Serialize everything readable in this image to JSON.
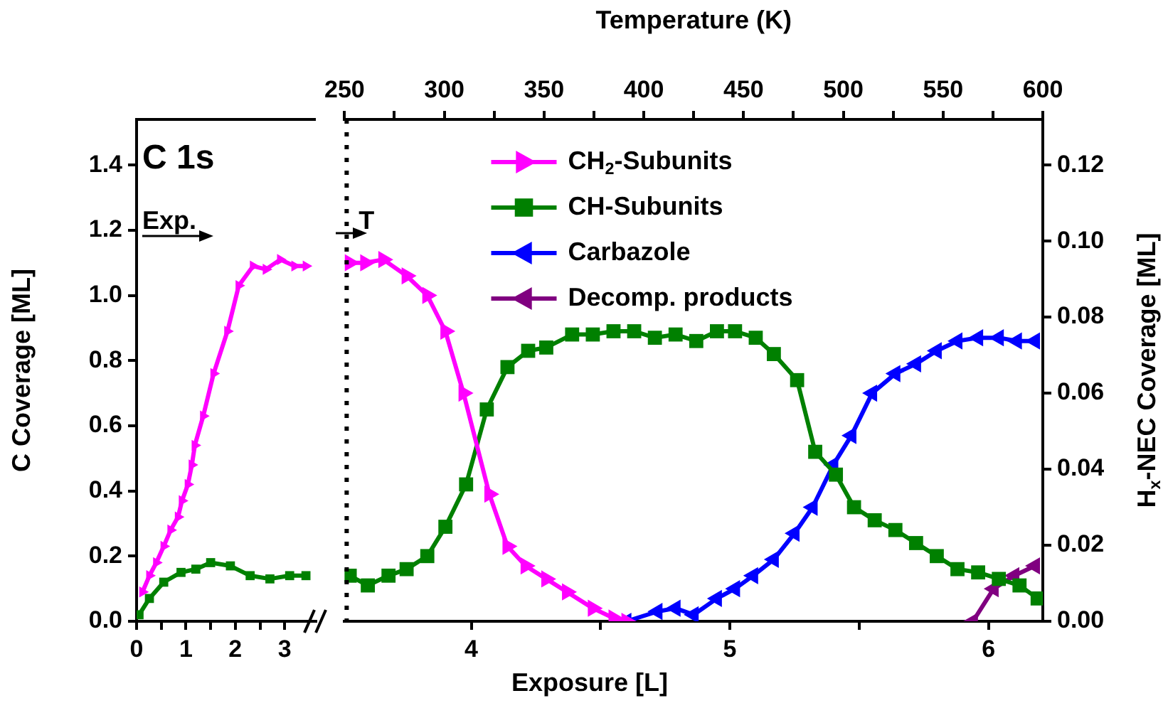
{
  "chart_data": [
    {
      "type": "line",
      "annotations": [
        "C 1s",
        "Exp."
      ],
      "ylabel": "C Coverage [ML]",
      "xlim": [
        0,
        3.63
      ],
      "xticks": [
        0,
        {
          "value": 0.5,
          "label": null
        },
        1,
        {
          "value": 1.5,
          "label": null
        },
        2,
        {
          "value": 2.5,
          "label": null
        },
        3
      ],
      "ylim": [
        0,
        1.54
      ],
      "yticks": [
        {
          "value": 0,
          "label": "0.0"
        },
        {
          "value": 0.2,
          "label": "0.2"
        },
        {
          "value": 0.4,
          "label": "0.4"
        },
        {
          "value": 0.6,
          "label": "0.6"
        },
        {
          "value": 0.8,
          "label": "0.8"
        },
        {
          "value": 1,
          "label": "1.0"
        },
        {
          "value": 1.2,
          "label": "1.2"
        },
        {
          "value": 1.4,
          "label": "1.4"
        }
      ],
      "grid": false,
      "series": [
        {
          "color": "#ff00ff",
          "marker": "triangle-right",
          "x": [
            0.12,
            0.26,
            0.4,
            0.55,
            0.69,
            0.84,
            0.92,
            1.04,
            1.12,
            1.18,
            1.35,
            1.56,
            1.84,
            2.07,
            2.36,
            2.62,
            2.91,
            3.2,
            3.43
          ],
          "values": [
            0.09,
            0.14,
            0.18,
            0.23,
            0.28,
            0.32,
            0.37,
            0.42,
            0.48,
            0.54,
            0.63,
            0.76,
            0.89,
            1.03,
            1.09,
            1.08,
            1.11,
            1.09,
            1.09
          ]
        },
        {
          "color": "#008000",
          "marker": "square",
          "x": [
            0.05,
            0.26,
            0.55,
            0.9,
            1.2,
            1.5,
            1.9,
            2.3,
            2.7,
            3.1,
            3.43
          ],
          "values": [
            0.02,
            0.07,
            0.12,
            0.15,
            0.16,
            0.18,
            0.17,
            0.14,
            0.13,
            0.14,
            0.14
          ]
        }
      ]
    },
    {
      "type": "line",
      "annotations": [
        "T"
      ],
      "xlabel": "Exposure [L]",
      "x2label": "Temperature (K)",
      "y2label": "H$_{x}$-NEC Coverage [ML]",
      "xlim": [
        3.51,
        6.21
      ],
      "xticks": [
        4,
        {
          "value": 4.5,
          "label": null
        },
        5,
        {
          "value": 5.5,
          "label": null
        },
        6
      ],
      "x2lim": [
        250,
        600
      ],
      "x2ticks": [
        250,
        {
          "value": 275,
          "label": null
        },
        300,
        {
          "value": 325,
          "label": null
        },
        350,
        {
          "value": 375,
          "label": null
        },
        400,
        {
          "value": 425,
          "label": null
        },
        450,
        {
          "value": 475,
          "label": null
        },
        500,
        {
          "value": 525,
          "label": null
        },
        550,
        {
          "value": 575,
          "label": null
        },
        600
      ],
      "ylim": [
        0,
        1.54
      ],
      "y2lim": [
        0,
        0.132
      ],
      "y2ticks": [
        {
          "value": 0,
          "label": "0.00"
        },
        {
          "value": 0.02,
          "label": "0.02"
        },
        {
          "value": 0.04,
          "label": "0.04"
        },
        {
          "value": 0.06,
          "label": "0.06"
        },
        {
          "value": 0.08,
          "label": "0.08"
        },
        {
          "value": 0.1,
          "label": "0.10"
        },
        {
          "value": 0.12,
          "label": "0.12"
        }
      ],
      "grid": false,
      "legend": "top",
      "ref_lines": [
        {
          "axis": "x",
          "value": 3.51,
          "line_style": "dotted",
          "color": "#000000"
        }
      ],
      "series": [
        {
          "name": "CH$_{2}$-Subunits",
          "color": "#ff00ff",
          "marker": "triangle-right",
          "x": [
            3.53,
            3.59,
            3.66,
            3.75,
            3.83,
            3.9,
            3.97,
            4.07,
            4.14,
            4.21,
            4.29,
            4.37,
            4.47,
            4.55,
            4.6
          ],
          "values": [
            1.1,
            1.1,
            1.11,
            1.06,
            1,
            0.89,
            0.7,
            0.39,
            0.23,
            0.17,
            0.13,
            0.09,
            0.04,
            0.01,
            0
          ]
        },
        {
          "name": "CH-Subunits",
          "color": "#008000",
          "marker": "square",
          "x": [
            3.53,
            3.6,
            3.68,
            3.75,
            3.83,
            3.9,
            3.98,
            4.06,
            4.14,
            4.22,
            4.29,
            4.39,
            4.47,
            4.55,
            4.63,
            4.71,
            4.79,
            4.87,
            4.95,
            5.02,
            5.1,
            5.17,
            5.26,
            5.33,
            5.41,
            5.48,
            5.56,
            5.64,
            5.72,
            5.8,
            5.88,
            5.96,
            6.04,
            6.12,
            6.19
          ],
          "values": [
            0.14,
            0.11,
            0.14,
            0.16,
            0.2,
            0.29,
            0.42,
            0.65,
            0.78,
            0.83,
            0.84,
            0.88,
            0.88,
            0.89,
            0.89,
            0.87,
            0.88,
            0.86,
            0.89,
            0.89,
            0.87,
            0.82,
            0.74,
            0.52,
            0.45,
            0.35,
            0.31,
            0.28,
            0.24,
            0.2,
            0.16,
            0.15,
            0.13,
            0.11,
            0.07
          ]
        },
        {
          "name": "Carbazole",
          "color": "#0000ff",
          "marker": "triangle-left",
          "x": [
            4.6,
            4.72,
            4.79,
            4.86,
            4.95,
            5.02,
            5.09,
            5.17,
            5.25,
            5.32,
            5.4,
            5.47,
            5.55,
            5.64,
            5.72,
            5.8,
            5.88,
            5.96,
            6.04,
            6.11,
            6.18
          ],
          "values": [
            0,
            0.03,
            0.04,
            0.02,
            0.07,
            0.1,
            0.14,
            0.19,
            0.27,
            0.35,
            0.48,
            0.57,
            0.7,
            0.76,
            0.79,
            0.83,
            0.86,
            0.87,
            0.87,
            0.86,
            0.86
          ]
        },
        {
          "name": "Decomp. products",
          "color": "#800080",
          "marker": "triangle-left",
          "x": [
            5.94,
            6.02,
            6.1,
            6.18
          ],
          "values": [
            0,
            0.1,
            0.14,
            0.17
          ]
        }
      ]
    }
  ]
}
